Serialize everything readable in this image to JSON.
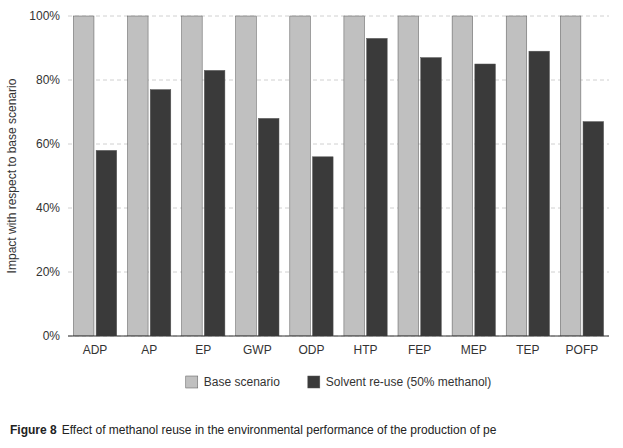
{
  "chart_data": {
    "type": "bar",
    "categories": [
      "ADP",
      "AP",
      "EP",
      "GWP",
      "ODP",
      "HTP",
      "FEP",
      "MEP",
      "TEP",
      "POFP"
    ],
    "series": [
      {
        "name": "Base scenario",
        "color": "#C0C0C0",
        "values": [
          100,
          100,
          100,
          100,
          100,
          100,
          100,
          100,
          100,
          100
        ]
      },
      {
        "name": "Solvent re-use (50% methanol)",
        "color": "#3A3A3A",
        "values": [
          58,
          77,
          83,
          68,
          56,
          93,
          87,
          85,
          89,
          67
        ]
      }
    ],
    "ylabel": "Impact with respect to base scenario",
    "ylim": [
      0,
      100
    ],
    "yticks": [
      {
        "value": 0,
        "label": "0%"
      },
      {
        "value": 20,
        "label": "20%"
      },
      {
        "value": 40,
        "label": "40%"
      },
      {
        "value": 60,
        "label": "60%"
      },
      {
        "value": 80,
        "label": "80%"
      },
      {
        "value": 100,
        "label": "100%"
      }
    ],
    "grid": true,
    "legend": "bottom",
    "annotations": [
      "Figure 8",
      "Effect of methanol reuse in the environmental performance of the production of pе"
    ]
  }
}
